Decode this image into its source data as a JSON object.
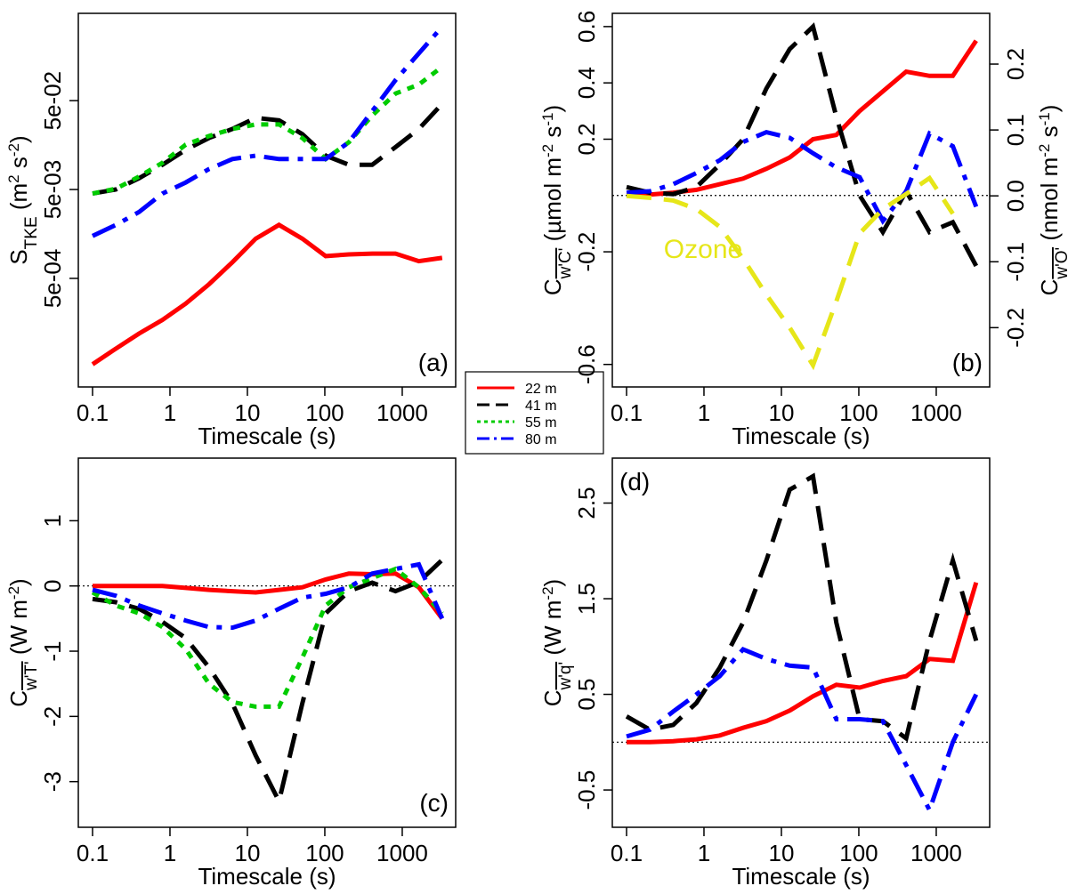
{
  "chart_data": [
    {
      "type": "line",
      "panel_label": "(a)",
      "label_corner": "bottom-right",
      "legend": true,
      "xlabel": "Timescale (s)",
      "xlog": true,
      "xlim": [
        0.0655,
        4900
      ],
      "xticks": [
        0.1,
        1,
        10,
        100,
        1000
      ],
      "ylog": true,
      "ylim": [
        3e-05,
        0.48
      ],
      "yticks": [
        {
          "value": 0.0005,
          "label": "5e-04"
        },
        {
          "value": 0.005,
          "label": "5e-03"
        },
        {
          "value": 0.05,
          "label": "5e-02"
        }
      ],
      "ylabel": [
        [
          "S",
          "base"
        ],
        [
          "TKE",
          "sub"
        ],
        [
          " (m",
          "base"
        ],
        [
          "2",
          "sup"
        ],
        [
          " s",
          "base"
        ],
        [
          "-2",
          "sup"
        ],
        [
          ")",
          "base"
        ]
      ],
      "x": [
        0.1,
        0.2,
        0.4,
        0.8,
        1.6,
        3.2,
        6.4,
        12.8,
        25.6,
        51.2,
        102.4,
        204.8,
        409.6,
        819.2,
        1638.4,
        3276.8
      ],
      "series": [
        {
          "name": "22 m",
          "color": "#ff0000",
          "dash": "solid",
          "values": [
            5.4e-05,
            8.1e-05,
            0.00012,
            0.00017,
            0.00026,
            0.00043,
            0.00076,
            0.0014,
            0.002,
            0.0014,
            0.00089,
            0.00093,
            0.00095,
            0.00095,
            0.00078,
            0.00085
          ]
        },
        {
          "name": "41 m",
          "color": "#000000",
          "dash": "dashed",
          "values": [
            0.0045,
            0.005,
            0.0067,
            0.0095,
            0.014,
            0.019,
            0.024,
            0.032,
            0.03,
            0.021,
            0.012,
            0.0095,
            0.0095,
            0.015,
            0.024,
            0.046
          ]
        },
        {
          "name": "55 m",
          "color": "#00cc00",
          "dash": "dotted",
          "values": [
            0.0045,
            0.0051,
            0.007,
            0.01,
            0.016,
            0.02,
            0.024,
            0.027,
            0.027,
            0.019,
            0.011,
            0.017,
            0.034,
            0.06,
            0.076,
            0.12
          ]
        },
        {
          "name": "80 m",
          "color": "#0000ff",
          "dash": "dotdash",
          "values": [
            0.0015,
            0.002,
            0.0028,
            0.0045,
            0.006,
            0.0085,
            0.011,
            0.012,
            0.011,
            0.011,
            0.011,
            0.017,
            0.038,
            0.085,
            0.17,
            0.34
          ]
        }
      ]
    },
    {
      "type": "line",
      "panel_label": "(b)",
      "label_corner": "bottom-right",
      "xlabel": "Timescale (s)",
      "xlog": true,
      "xlim": [
        0.0655,
        4900
      ],
      "xticks": [
        0.1,
        1,
        10,
        100,
        1000
      ],
      "ylim": [
        -0.68,
        0.647
      ],
      "yticks": [
        -0.6,
        -0.2,
        0.2,
        0.4,
        0.6
      ],
      "ylabel": [
        [
          "C",
          "base"
        ],
        [
          "w'C'",
          "subover"
        ],
        [
          " (µmol m",
          "base"
        ],
        [
          "-2",
          "sup"
        ],
        [
          " s",
          "base"
        ],
        [
          "-1",
          "sup"
        ],
        [
          ")",
          "base"
        ]
      ],
      "y2lim": [
        -0.29,
        0.277
      ],
      "y2ticks": [
        -0.2,
        -0.1,
        {
          "value": 0,
          "label": "0.0"
        },
        0.1,
        0.2
      ],
      "y2label": [
        [
          "C",
          "base"
        ],
        [
          "w'O'",
          "subover"
        ],
        [
          " (nmol m",
          "base"
        ],
        [
          "-2",
          "sup"
        ],
        [
          " s",
          "base"
        ],
        [
          "-1",
          "sup"
        ],
        [
          ")",
          "base"
        ]
      ],
      "hlines": [
        0
      ],
      "x": [
        0.1,
        0.2,
        0.4,
        0.8,
        1.6,
        3.2,
        6.4,
        12.8,
        25.6,
        51.2,
        102.4,
        204.8,
        409.6,
        819.2,
        1638.4,
        3276.8
      ],
      "series": [
        {
          "name": "22 m",
          "color": "#ff0000",
          "dash": "solid",
          "values": [
            0,
            0.003,
            0.01,
            0.02,
            0.04,
            0.06,
            0.095,
            0.135,
            0.2,
            0.215,
            0.3,
            0.37,
            0.44,
            0.425,
            0.425,
            0.55
          ]
        },
        {
          "name": "41 m",
          "color": "#000000",
          "dash": "dashed",
          "values": [
            0.03,
            0.01,
            0.005,
            0.03,
            0.11,
            0.2,
            0.38,
            0.52,
            0.6,
            0.28,
            0,
            -0.13,
            0.015,
            -0.13,
            -0.095,
            -0.25
          ]
        },
        {
          "name": "80 m",
          "color": "#0000ff",
          "dash": "dotdash",
          "values": [
            0.01,
            0.015,
            0.04,
            0.08,
            0.125,
            0.19,
            0.225,
            0.205,
            0.15,
            0.1,
            0.065,
            -0.09,
            0.015,
            0.22,
            0.175,
            -0.04
          ]
        },
        {
          "name": "Ozone",
          "color": "#e6e619",
          "dash": "dashed",
          "axis": "y2",
          "inline_label": true,
          "values": [
            0,
            -0.003,
            -0.007,
            -0.02,
            -0.047,
            -0.095,
            -0.15,
            -0.2,
            -0.257,
            -0.16,
            -0.057,
            -0.02,
            0.003,
            0.027,
            -0.027,
            null
          ]
        }
      ]
    },
    {
      "type": "line",
      "panel_label": "(c)",
      "label_corner": "bottom-right",
      "xlabel": "Timescale (s)",
      "xlog": true,
      "xlim": [
        0.0655,
        4900
      ],
      "xticks": [
        0.1,
        1,
        10,
        100,
        1000
      ],
      "ylim": [
        -3.7,
        1.96
      ],
      "yticks": [
        -3,
        -2,
        -1,
        0,
        1
      ],
      "ylabel": [
        [
          "C",
          "base"
        ],
        [
          "w'T'",
          "subover"
        ],
        [
          " (W m",
          "base"
        ],
        [
          "-2",
          "sup"
        ],
        [
          ")",
          "base"
        ]
      ],
      "hlines": [
        0
      ],
      "x": [
        0.1,
        0.2,
        0.4,
        0.8,
        1.6,
        3.2,
        6.4,
        12.8,
        25.6,
        51.2,
        102.4,
        204.8,
        409.6,
        819.2,
        1638.4,
        3276.8
      ],
      "series": [
        {
          "name": "22 m",
          "color": "#ff0000",
          "dash": "solid",
          "values": [
            0,
            0,
            0,
            0,
            -0.03,
            -0.06,
            -0.08,
            -0.1,
            -0.06,
            -0.02,
            0.1,
            0.19,
            0.18,
            0.19,
            -0.02,
            -0.5
          ]
        },
        {
          "name": "41 m",
          "color": "#000000",
          "dash": "dashed",
          "values": [
            -0.2,
            -0.25,
            -0.35,
            -0.55,
            -0.8,
            -1.25,
            -1.8,
            -2.6,
            -3.3,
            -1.8,
            -0.42,
            -0.08,
            0.05,
            -0.08,
            0.06,
            0.4
          ]
        },
        {
          "name": "55 m",
          "color": "#00cc00",
          "dash": "dotted",
          "values": [
            -0.1,
            -0.3,
            -0.42,
            -0.63,
            -0.97,
            -1.5,
            -1.78,
            -1.85,
            -1.85,
            -1.1,
            -0.3,
            -0.02,
            0.12,
            0.26,
            -0.02,
            -0.42
          ]
        },
        {
          "name": "80 m",
          "color": "#0000ff",
          "dash": "dotdash",
          "values": [
            -0.06,
            -0.15,
            -0.3,
            -0.42,
            -0.53,
            -0.63,
            -0.64,
            -0.53,
            -0.35,
            -0.18,
            -0.12,
            -0.02,
            0.19,
            0.26,
            0.33,
            -0.5
          ]
        }
      ]
    },
    {
      "type": "line",
      "panel_label": "(d)",
      "label_corner": "top-left",
      "xlabel": "Timescale (s)",
      "xlog": true,
      "xlim": [
        0.0655,
        4900
      ],
      "xticks": [
        0.1,
        1,
        10,
        100,
        1000
      ],
      "ylim": [
        -0.89,
        2.97
      ],
      "yticks": [
        -0.5,
        0.5,
        1.5,
        2.5
      ],
      "ylabel": [
        [
          "C",
          "base"
        ],
        [
          "w'q'",
          "subover"
        ],
        [
          " (W m",
          "base"
        ],
        [
          "-2",
          "sup"
        ],
        [
          ")",
          "base"
        ]
      ],
      "hlines": [
        0
      ],
      "x": [
        0.1,
        0.2,
        0.4,
        0.8,
        1.6,
        3.2,
        6.4,
        12.8,
        25.6,
        51.2,
        102.4,
        204.8,
        409.6,
        819.2,
        1638.4,
        3276.8
      ],
      "series": [
        {
          "name": "22 m",
          "color": "#ff0000",
          "dash": "solid",
          "values": [
            0,
            0,
            0.01,
            0.03,
            0.07,
            0.15,
            0.22,
            0.33,
            0.48,
            0.6,
            0.57,
            0.64,
            0.69,
            0.87,
            0.85,
            1.67
          ]
        },
        {
          "name": "41 m",
          "color": "#000000",
          "dash": "dashed",
          "values": [
            0.27,
            0.13,
            0.18,
            0.41,
            0.78,
            1.25,
            1.9,
            2.64,
            2.78,
            1.25,
            0.24,
            0.22,
            0.04,
            1.06,
            1.9,
            1.06
          ]
        },
        {
          "name": "80 m",
          "color": "#0000ff",
          "dash": "dotdash",
          "values": [
            0.06,
            0.13,
            0.32,
            0.5,
            0.69,
            0.97,
            0.87,
            0.8,
            0.78,
            0.24,
            0.24,
            0.22,
            -0.24,
            -0.71,
            0,
            0.5
          ]
        }
      ]
    }
  ]
}
